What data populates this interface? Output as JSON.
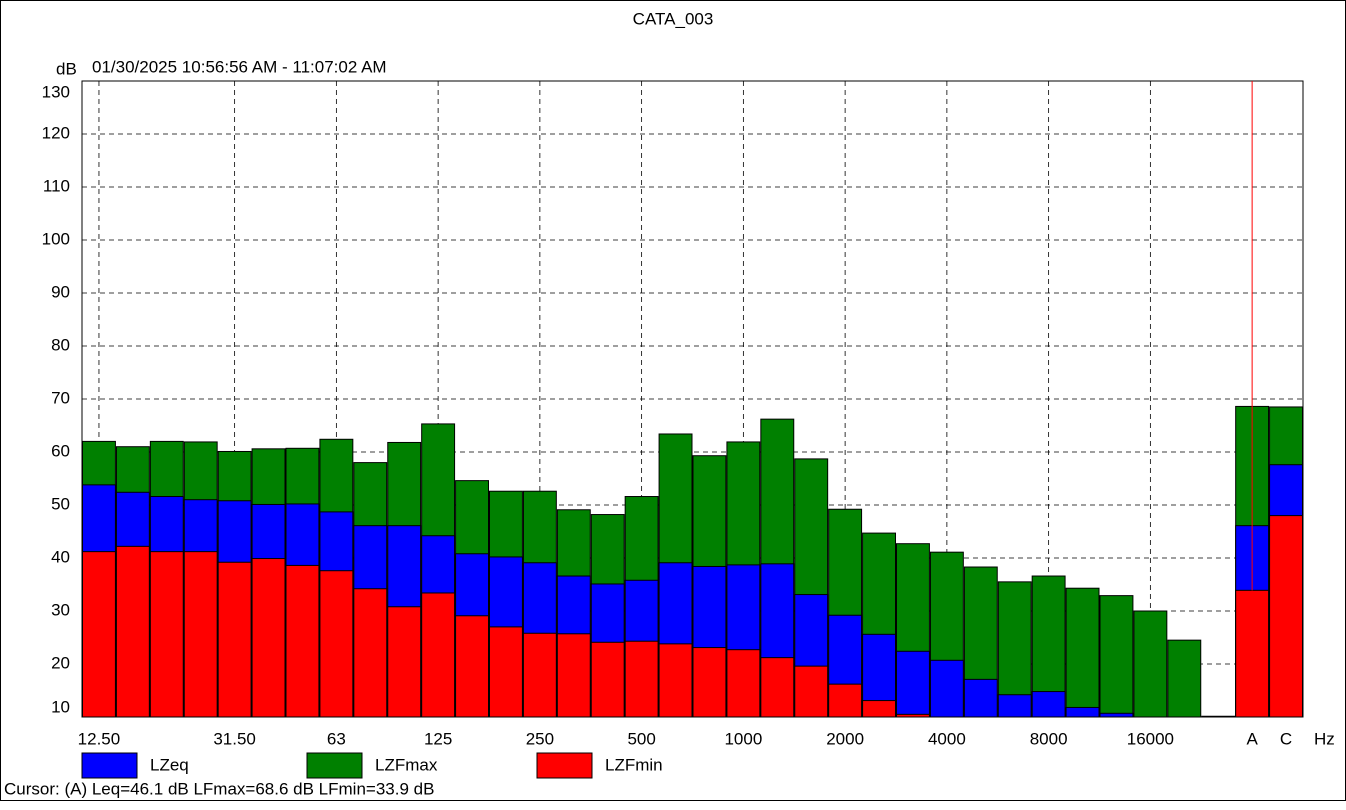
{
  "chart_data": {
    "type": "bar",
    "title": "CATA_003",
    "y_label": "dB",
    "subtitle": "01/30/2025 10:56:56 AM - 11:07:02 AM",
    "x_unit": "Hz",
    "footer": "Cursor: (A)  Leq=46.1 dB  LFmax=68.6 dB  LFmin=33.9 dB",
    "categories": [
      "12.50",
      null,
      null,
      null,
      "31.50",
      null,
      null,
      "63",
      null,
      null,
      "125",
      null,
      null,
      "250",
      null,
      null,
      "500",
      null,
      null,
      "1000",
      null,
      null,
      "2000",
      null,
      null,
      "4000",
      null,
      null,
      "8000",
      null,
      null,
      "16000",
      null,
      null,
      "A",
      "C"
    ],
    "series": [
      {
        "name": "LZeq",
        "color": "#0000ff",
        "values": [
          53.8,
          52.4,
          51.6,
          51.0,
          50.8,
          50.1,
          50.2,
          48.7,
          46.1,
          46.1,
          44.2,
          40.8,
          40.2,
          39.1,
          36.6,
          35.1,
          35.8,
          39.1,
          38.4,
          38.7,
          38.9,
          33.1,
          29.2,
          25.6,
          22.4,
          20.7,
          17.1,
          14.2,
          14.8,
          11.8,
          10.7,
          9.5,
          8.0,
          null,
          46.1,
          57.6
        ]
      },
      {
        "name": "LZFmax",
        "color": "#008000",
        "values": [
          62.0,
          61.0,
          62.0,
          61.9,
          60.1,
          60.6,
          60.7,
          62.4,
          58.0,
          61.8,
          65.3,
          54.6,
          52.6,
          52.6,
          49.1,
          48.2,
          51.6,
          63.4,
          59.3,
          61.9,
          66.2,
          58.7,
          49.2,
          44.7,
          42.7,
          41.1,
          38.3,
          35.5,
          36.6,
          34.3,
          32.9,
          30.0,
          24.5,
          null,
          68.6,
          68.5
        ]
      },
      {
        "name": "LZFmin",
        "color": "#ff0000",
        "values": [
          41.2,
          42.2,
          41.2,
          41.2,
          39.2,
          39.9,
          38.6,
          37.6,
          34.2,
          30.8,
          33.4,
          29.1,
          27.0,
          25.8,
          25.7,
          24.1,
          24.3,
          23.8,
          23.1,
          22.7,
          21.2,
          19.6,
          16.2,
          13.1,
          10.5,
          9.0,
          8.0,
          7.0,
          7.0,
          6.0,
          6.0,
          5.0,
          5.0,
          null,
          33.9,
          48.0
        ]
      }
    ],
    "ylim": [
      10,
      130
    ],
    "yticks": [
      10,
      20,
      30,
      40,
      50,
      60,
      70,
      80,
      90,
      100,
      110,
      120,
      130
    ],
    "grid": true
  }
}
